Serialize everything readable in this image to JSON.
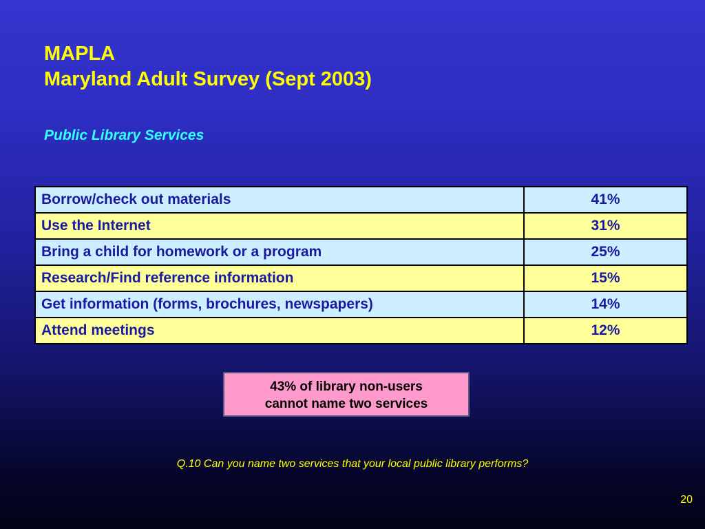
{
  "slide": {
    "title_line1": "MAPLA",
    "title_line2": "Maryland Adult Survey (Sept 2003)",
    "subtitle": "Public Library Services",
    "table": {
      "rows": [
        {
          "label": "Borrow/check out materials",
          "value": "41%"
        },
        {
          "label": "Use the Internet",
          "value": "31%"
        },
        {
          "label": "Bring a child for homework or a program",
          "value": "25%"
        },
        {
          "label": "Research/Find reference information",
          "value": "15%"
        },
        {
          "label": "Get information (forms, brochures, newspapers)",
          "value": "14%"
        },
        {
          "label": "Attend meetings",
          "value": "12%"
        }
      ]
    },
    "callout": {
      "line1": "43% of library non-users",
      "line2": "cannot name two services"
    },
    "question": "Q.10  Can you name two services that your local public library performs?",
    "page_number": "20"
  },
  "colors": {
    "title": "#ffff00",
    "subtitle": "#33ffff",
    "row_blue": "#cceeff",
    "row_yellow": "#ffff99",
    "table_text": "#1a1aa0",
    "callout_bg": "#ff99cc"
  }
}
